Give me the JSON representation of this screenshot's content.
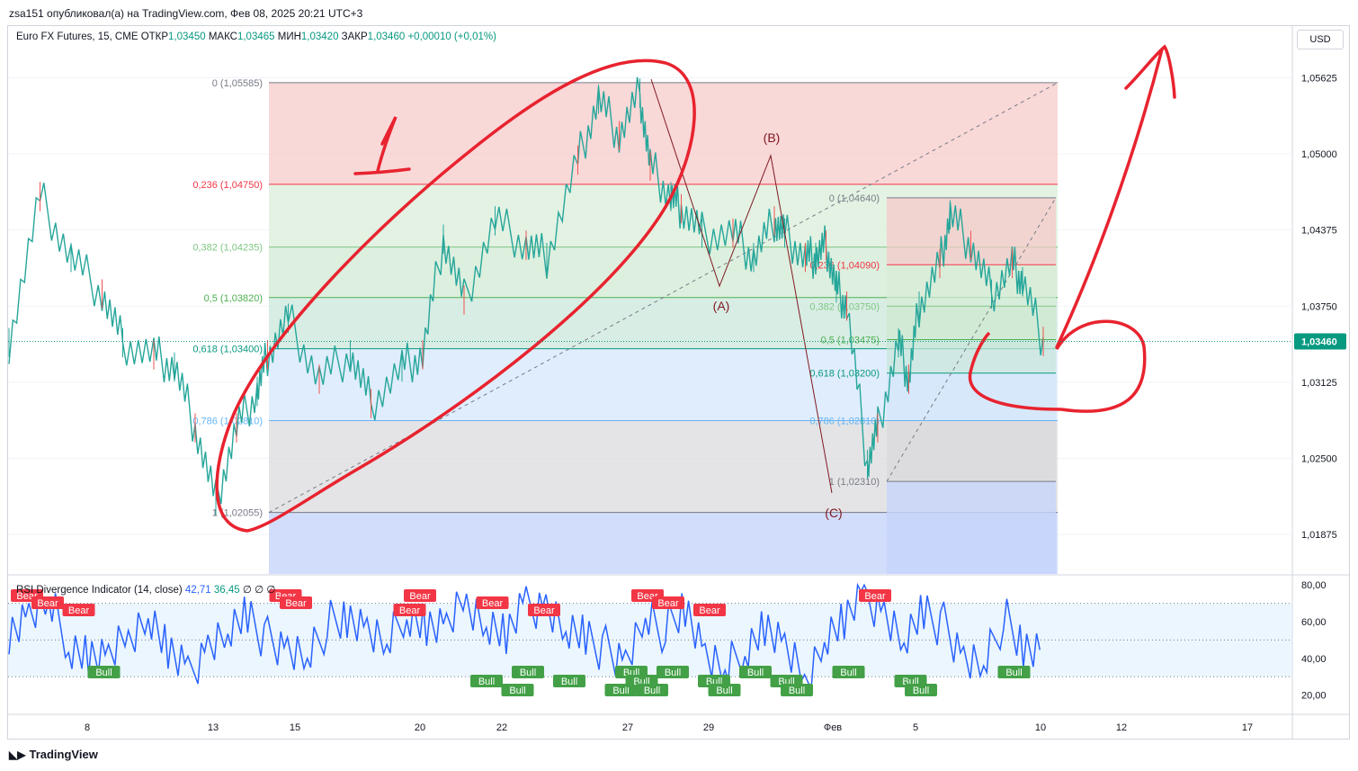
{
  "header": {
    "published": "zsa151 опубликовал(а) на TradingView.com, Фев 08, 2025 20:21 UTC+3"
  },
  "legend": {
    "symbol": "Euro FX Futures, 15, CME",
    "open_label": "ОТКР",
    "open": "1,03450",
    "high_label": "МАКС",
    "high": "1,03465",
    "low_label": "МИН",
    "low": "1,03420",
    "close_label": "ЗАКР",
    "close": "1,03460",
    "change": "+0,00010 (+0,01%)"
  },
  "currency": "USD",
  "price_axis": {
    "ticks": [
      "1,05625",
      "1,05000",
      "1,04375",
      "1,03750",
      "1,03125",
      "1,02500",
      "1,01875"
    ],
    "current_price": "1,03460",
    "current_color": "#089981"
  },
  "time_axis": {
    "ticks": [
      "8",
      "13",
      "15",
      "20",
      "22",
      "27",
      "29",
      "Фев",
      "5",
      "10",
      "12",
      "17"
    ]
  },
  "fib_big": {
    "levels": [
      {
        "label": "0 (1,05585)",
        "price": 1.05585,
        "color": "#787b86"
      },
      {
        "label": "0,236 (1,04750)",
        "price": 1.0475,
        "color": "#f23645"
      },
      {
        "label": "0,382 (1,04235)",
        "price": 1.04235,
        "color": "#81c784"
      },
      {
        "label": "0,5 (1,03820)",
        "price": 1.0382,
        "color": "#4caf50"
      },
      {
        "label": "0,618 (1,03400)",
        "price": 1.034,
        "color": "#089981"
      },
      {
        "label": "0,786 (1,02810)",
        "price": 1.0281,
        "color": "#64b5f6"
      },
      {
        "label": "1 (1,02055)",
        "price": 1.02055,
        "color": "#787b86"
      }
    ]
  },
  "fib_small": {
    "levels": [
      {
        "label": "0 (1,04640)",
        "price": 1.0464,
        "color": "#787b86"
      },
      {
        "label": "0,236 (1,04090)",
        "price": 1.0409,
        "color": "#f23645"
      },
      {
        "label": "0,382 (1,03750)",
        "price": 1.0375,
        "color": "#81c784"
      },
      {
        "label": "0,5 (1,03475)",
        "price": 1.03475,
        "color": "#4caf50"
      },
      {
        "label": "0,618 (1,03200)",
        "price": 1.032,
        "color": "#089981"
      },
      {
        "label": "0,786 (1,02810)",
        "price": 1.0281,
        "color": "#64b5f6"
      },
      {
        "label": "1 (1,02310)",
        "price": 1.0231,
        "color": "#787b86"
      }
    ]
  },
  "wave_labels": {
    "a": "(A)",
    "b": "(B)",
    "c": "(C)"
  },
  "annotation": {
    "wave_one": "1"
  },
  "rsi": {
    "legend_name": "RSI Divergence Indicator (14, close)",
    "value1": "42,71",
    "value2": "36,45",
    "flags": "∅ ∅ ∅",
    "ticks": [
      "80,00",
      "60,00",
      "40,00",
      "20,00"
    ],
    "bear_label": "Bear",
    "bull_label": "Bull"
  },
  "chart_data": {
    "type": "line",
    "title": "Euro FX Futures, 15, CME",
    "ylim": [
      1.0155,
      1.0605
    ],
    "series": [
      {
        "x": [
          0,
          0.03,
          0.06,
          0.09,
          0.11,
          0.14,
          0.16,
          0.18,
          0.2,
          0.22,
          0.24,
          0.25,
          0.27,
          0.3,
          0.33,
          0.35,
          0.38,
          0.4,
          0.42,
          0.44,
          0.47,
          0.5,
          0.52,
          0.55,
          0.57,
          0.59,
          0.61,
          0.62,
          0.64,
          0.65,
          0.67,
          0.7,
          0.72,
          0.74,
          0.75,
          0.77,
          0.78,
          0.79,
          0.8,
          0.81,
          0.83,
          0.84,
          0.86,
          0.87,
          0.88,
          0.9,
          0.91,
          0.93,
          0.95,
          0.97,
          0.98,
          1.0
        ],
        "values": [
          1.0345,
          1.0465,
          1.0415,
          1.0385,
          1.0345,
          1.0335,
          1.0325,
          1.0275,
          1.0215,
          1.0275,
          1.0305,
          1.0335,
          1.0365,
          1.0315,
          1.0335,
          1.0295,
          1.0325,
          1.0335,
          1.043,
          1.038,
          1.0445,
          1.0425,
          1.0415,
          1.0495,
          1.0545,
          1.0515,
          1.055,
          1.049,
          1.0465,
          1.0455,
          1.0435,
          1.0435,
          1.0415,
          1.0445,
          1.0435,
          1.0415,
          1.0415,
          1.0425,
          1.039,
          1.0375,
          1.0245,
          1.0275,
          1.0345,
          1.0315,
          1.0375,
          1.041,
          1.045,
          1.0425,
          1.0385,
          1.041,
          1.0395,
          1.0346
        ]
      }
    ],
    "rsi_ylim": [
      10,
      85
    ],
    "rsi_levels": [
      70,
      50,
      30
    ],
    "rsi_values": [
      55,
      62,
      70,
      48,
      42,
      38,
      52,
      65,
      44,
      30,
      48,
      55,
      62,
      50,
      45,
      40,
      58,
      64,
      54,
      46,
      66,
      58,
      55,
      72,
      60,
      52,
      68,
      70,
      56,
      50,
      45,
      38,
      62,
      55,
      70,
      40,
      32,
      46,
      58,
      44,
      28,
      52,
      60,
      74,
      66,
      50,
      64,
      58,
      40,
      36,
      62,
      48,
      42
    ],
    "bear_signals": [
      0.0,
      0.02,
      0.05,
      0.25,
      0.26,
      0.37,
      0.38,
      0.45,
      0.5,
      0.6,
      0.62,
      0.66,
      0.82
    ],
    "bull_signals": [
      0.07,
      0.44,
      0.47,
      0.48,
      0.52,
      0.57,
      0.58,
      0.59,
      0.6,
      0.62,
      0.66,
      0.67,
      0.7,
      0.73,
      0.74,
      0.79,
      0.85,
      0.86,
      0.95
    ]
  }
}
